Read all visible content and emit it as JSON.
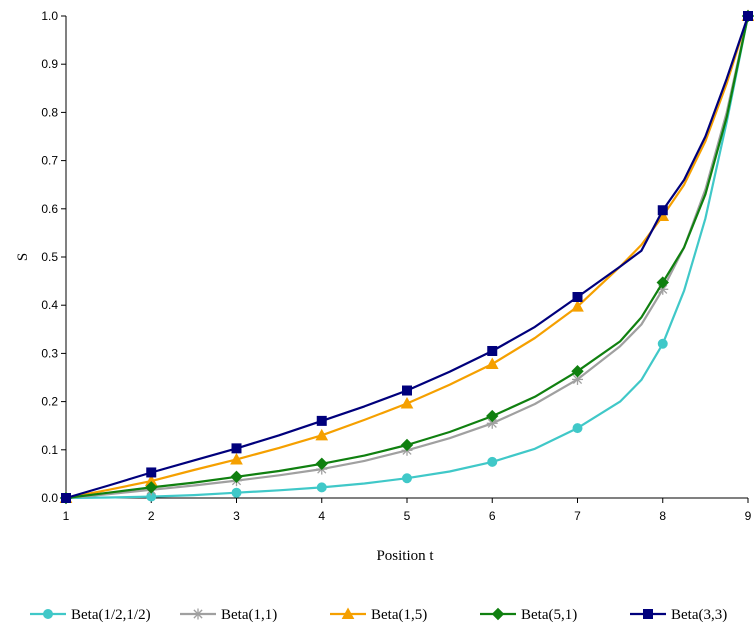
{
  "chart_data": {
    "type": "line",
    "title": "",
    "xlabel": "Position t",
    "ylabel": "S",
    "xlim": [
      1,
      9
    ],
    "ylim": [
      0,
      1
    ],
    "x_ticks": [
      "1",
      "2",
      "3",
      "4",
      "5",
      "6",
      "7",
      "8",
      "9"
    ],
    "y_ticks": [
      "0.0",
      "0.1",
      "0.2",
      "0.3",
      "0.4",
      "0.5",
      "0.6",
      "0.7",
      "0.8",
      "0.9",
      "1.0"
    ],
    "grid": false,
    "legend_position": "bottom",
    "series": [
      {
        "name": "Beta(1/2,1/2)",
        "color": "#40c8c8",
        "marker": "circle",
        "x": [
          1,
          1.5,
          2,
          2.5,
          3,
          3.5,
          4,
          4.5,
          5,
          5.5,
          6,
          6.5,
          7,
          7.5,
          7.75,
          8,
          8.25,
          8.5,
          8.75,
          9
        ],
        "y": [
          0.0,
          0.001,
          0.003,
          0.006,
          0.011,
          0.016,
          0.022,
          0.03,
          0.041,
          0.055,
          0.075,
          0.102,
          0.145,
          0.2,
          0.245,
          0.32,
          0.43,
          0.58,
          0.78,
          1.0
        ],
        "marker_x": [
          1,
          2,
          3,
          4,
          5,
          6,
          7,
          8,
          9
        ]
      },
      {
        "name": "Beta(1,1)",
        "color": "#a0a0a0",
        "marker": "asterisk",
        "x": [
          1,
          1.5,
          2,
          2.5,
          3,
          3.5,
          4,
          4.5,
          5,
          5.5,
          6,
          6.5,
          7,
          7.5,
          7.75,
          8,
          8.25,
          8.5,
          8.75,
          9
        ],
        "y": [
          0.0,
          0.008,
          0.017,
          0.026,
          0.036,
          0.047,
          0.06,
          0.077,
          0.099,
          0.124,
          0.155,
          0.195,
          0.246,
          0.315,
          0.36,
          0.433,
          0.52,
          0.64,
          0.8,
          1.0
        ],
        "marker_x": [
          1,
          2,
          3,
          4,
          5,
          6,
          7,
          8,
          9
        ]
      },
      {
        "name": "Beta(1,5)",
        "color": "#f5a000",
        "marker": "triangle",
        "x": [
          1,
          1.5,
          2,
          2.5,
          3,
          3.5,
          4,
          4.5,
          5,
          5.5,
          6,
          6.5,
          7,
          7.5,
          7.75,
          8,
          8.25,
          8.5,
          8.75,
          9
        ],
        "y": [
          0.0,
          0.017,
          0.035,
          0.058,
          0.08,
          0.104,
          0.13,
          0.162,
          0.196,
          0.235,
          0.278,
          0.332,
          0.397,
          0.48,
          0.525,
          0.585,
          0.65,
          0.74,
          0.86,
          1.0
        ],
        "marker_x": [
          1,
          2,
          3,
          4,
          5,
          6,
          7,
          8,
          9
        ]
      },
      {
        "name": "Beta(5,1)",
        "color": "#108010",
        "marker": "diamond",
        "x": [
          1,
          1.5,
          2,
          2.5,
          3,
          3.5,
          4,
          4.5,
          5,
          5.5,
          6,
          6.5,
          7,
          7.5,
          7.75,
          8,
          8.25,
          8.5,
          8.75,
          9
        ],
        "y": [
          0.0,
          0.011,
          0.022,
          0.032,
          0.044,
          0.056,
          0.071,
          0.088,
          0.11,
          0.137,
          0.17,
          0.21,
          0.263,
          0.325,
          0.375,
          0.447,
          0.52,
          0.63,
          0.79,
          1.0
        ],
        "marker_x": [
          1,
          2,
          3,
          4,
          5,
          6,
          7,
          8,
          9
        ]
      },
      {
        "name": "Beta(3,3)",
        "color": "#00007c",
        "marker": "square",
        "x": [
          1,
          1.5,
          2,
          2.5,
          3,
          3.5,
          4,
          4.5,
          5,
          5.5,
          6,
          6.5,
          7,
          7.5,
          7.75,
          8,
          8.25,
          8.5,
          8.75,
          9
        ],
        "y": [
          0.0,
          0.026,
          0.053,
          0.078,
          0.103,
          0.13,
          0.16,
          0.19,
          0.223,
          0.262,
          0.305,
          0.355,
          0.417,
          0.48,
          0.513,
          0.597,
          0.66,
          0.75,
          0.87,
          1.0
        ],
        "marker_x": [
          1,
          2,
          3,
          4,
          5,
          6,
          7,
          8,
          9
        ]
      }
    ]
  }
}
